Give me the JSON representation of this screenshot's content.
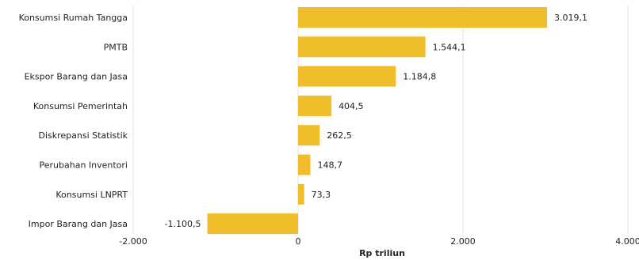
{
  "chart_data": {
    "type": "bar",
    "orientation": "horizontal",
    "categories": [
      "Konsumsi Rumah Tangga",
      "PMTB",
      "Ekspor Barang dan Jasa",
      "Konsumsi Pemerintah",
      "Diskrepansi Statistik",
      "Perubahan Inventori",
      "Konsumsi LNPRT",
      "Impor Barang dan Jasa"
    ],
    "values": [
      3019.1,
      1544.1,
      1184.8,
      404.5,
      262.5,
      148.7,
      73.3,
      -1100.5
    ],
    "value_labels": [
      "3.019,1",
      "1.544,1",
      "1.184,8",
      "404,5",
      "262,5",
      "148,7",
      "73,3",
      "-1.100,5"
    ],
    "xlabel": "Rp triliun",
    "xlim": [
      -2000,
      4000
    ],
    "xticks": [
      -2000,
      0,
      2000,
      4000
    ],
    "xtick_labels": [
      "-2.000",
      "0",
      "2.000",
      "4.000"
    ],
    "grid": "vertical",
    "bar_color": "#F0BE2A",
    "grid_color": "#E3E3E3"
  }
}
